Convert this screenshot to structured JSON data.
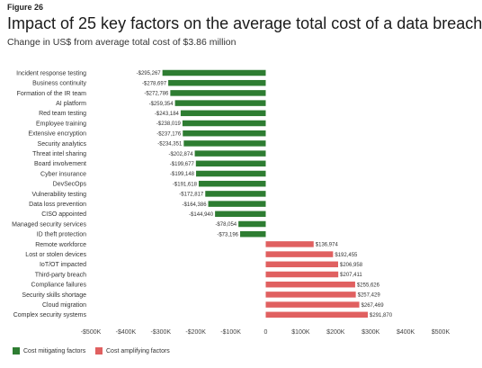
{
  "figure_label": "Figure 26",
  "title": "Impact of 25 key factors on the average total cost of a data breach",
  "subtitle": "Change in US$ from average total cost of $3.86 million",
  "colors": {
    "mitigating": "#2e7d32",
    "amplifying": "#e06060"
  },
  "legend": [
    {
      "label": "Cost mitigating factors",
      "color": "#2e7d32"
    },
    {
      "label": "Cost amplifying factors",
      "color": "#e06060"
    }
  ],
  "chart_data": {
    "type": "bar",
    "orientation": "horizontal",
    "categories": [
      "Incident response testing",
      "Business continuity",
      "Formation of the IR team",
      "AI platform",
      "Red team testing",
      "Employee training",
      "Extensive encryption",
      "Security analytics",
      "Threat intel sharing",
      "Board involvement",
      "Cyber insurance",
      "DevSecOps",
      "Vulnerability testing",
      "Data loss prevention",
      "CISO appointed",
      "Managed security services",
      "ID theft protection",
      "Remote workforce",
      "Lost or stolen devices",
      "IoT/OT impacted",
      "Third-party breach",
      "Compliance failures",
      "Security skills shortage",
      "Cloud migration",
      "Complex security systems"
    ],
    "values": [
      -295267,
      -278697,
      -272786,
      -259354,
      -243184,
      -238019,
      -237176,
      -234351,
      -202874,
      -199677,
      -199148,
      -191618,
      -172817,
      -164386,
      -144940,
      -78054,
      -73196,
      136974,
      192455,
      206958,
      207411,
      255626,
      257429,
      267469,
      291870
    ],
    "value_labels": [
      "-$295,267",
      "-$278,697",
      "-$272,786",
      "-$259,354",
      "-$243,184",
      "-$238,019",
      "-$237,176",
      "-$234,351",
      "-$202,874",
      "-$199,677",
      "-$199,148",
      "-$191,618",
      "-$172,817",
      "-$164,386",
      "-$144,940",
      "-$78,054",
      "-$73,196",
      "$136,974",
      "$192,455",
      "$206,958",
      "$207,411",
      "$255,626",
      "$257,429",
      "$267,469",
      "$291,870"
    ],
    "xlim": [
      -500000,
      500000
    ],
    "x_ticks": [
      -500000,
      -400000,
      -300000,
      -200000,
      -100000,
      0,
      100000,
      200000,
      300000,
      400000,
      500000
    ],
    "x_tick_labels": [
      "-$500K",
      "-$400K",
      "-$300K",
      "-$200K",
      "-$100K",
      "0",
      "$100K",
      "$200K",
      "$300K",
      "$400K",
      "$500K"
    ],
    "grid": false,
    "legend_position": "bottom-left"
  }
}
